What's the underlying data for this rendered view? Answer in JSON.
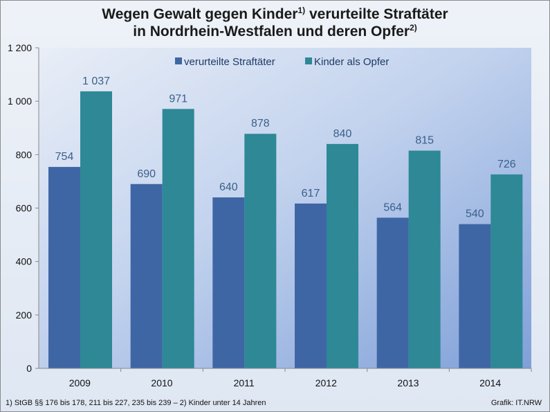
{
  "title": {
    "line1_a": "Wegen Gewalt gegen Kinder",
    "line1_sup": "1)",
    "line1_b": " verurteilte Straftäter",
    "line2_a": "in Nordrhein-Westfalen und deren Opfer",
    "line2_sup": "2)"
  },
  "footnote": "1) StGB §§ 176 bis 178, 211 bis 227, 235 bis 239 – 2) Kinder unter 14 Jahren",
  "credit": "Grafik: IT.NRW",
  "colors": {
    "series1": "#3f66a4",
    "series2": "#2e8896",
    "label_text": "#3a5f8a",
    "axis": "#888888"
  },
  "chart_data": {
    "type": "bar",
    "categories": [
      "2009",
      "2010",
      "2011",
      "2012",
      "2013",
      "2014"
    ],
    "series": [
      {
        "name": "verurteilte Straftäter",
        "values": [
          754,
          690,
          640,
          617,
          564,
          540
        ],
        "labels": [
          "754",
          "690",
          "640",
          "617",
          "564",
          "540"
        ]
      },
      {
        "name": "Kinder als Opfer",
        "values": [
          1037,
          971,
          878,
          840,
          815,
          726
        ],
        "labels": [
          "1 037",
          "971",
          "878",
          "840",
          "815",
          "726"
        ]
      }
    ],
    "ylim": [
      0,
      1200
    ],
    "yticks": [
      0,
      200,
      400,
      600,
      800,
      1000,
      1200
    ],
    "ytick_labels": [
      "0",
      "200",
      "400",
      "600",
      "800",
      "1 000",
      "1 200"
    ],
    "grid": false,
    "legend_position": "top"
  }
}
